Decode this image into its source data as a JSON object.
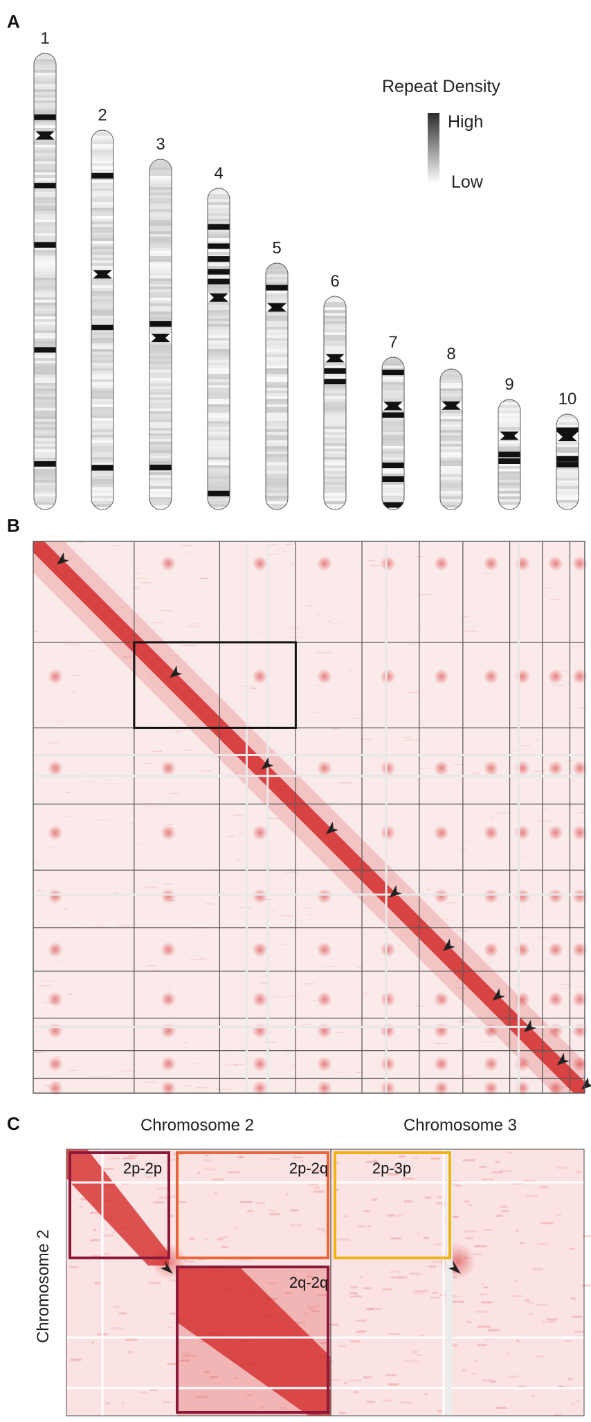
{
  "panels": {
    "a": "A",
    "b": "B",
    "c": "C"
  },
  "karyotype": {
    "chromosomes": [
      {
        "label": "1",
        "centromere": 0.18,
        "dark_bands": [
          0.14,
          0.29,
          0.42,
          0.65,
          0.9
        ]
      },
      {
        "label": "2",
        "centromere": 0.38,
        "dark_bands": [
          0.12,
          0.52,
          0.89
        ]
      },
      {
        "label": "3",
        "centromere": 0.51,
        "dark_bands": [
          0.47,
          0.88
        ]
      },
      {
        "label": "4",
        "centromere": 0.34,
        "dark_bands": [
          0.12,
          0.18,
          0.22,
          0.26,
          0.29,
          0.95
        ]
      },
      {
        "label": "5",
        "centromere": 0.18,
        "dark_bands": [
          0.1
        ]
      },
      {
        "label": "6",
        "centromere": 0.29,
        "dark_bands": [
          0.35,
          0.4
        ]
      },
      {
        "label": "7",
        "centromere": 0.32,
        "dark_bands": [
          0.1,
          0.38,
          0.71,
          0.8,
          0.97
        ]
      },
      {
        "label": "8",
        "centromere": 0.26,
        "dark_bands": []
      },
      {
        "label": "9",
        "centromere": 0.33,
        "dark_bands": [
          0.5,
          0.56
        ]
      },
      {
        "label": "10",
        "centromere": 0.24,
        "dark_bands": [
          0.17,
          0.47,
          0.53
        ]
      }
    ],
    "legend": {
      "title": "Repeat Density",
      "high": "High",
      "low": "Low",
      "colors": {
        "high": "#2b2b2b",
        "low": "#ffffff"
      }
    }
  },
  "heatmap": {
    "color": "#d42b2b",
    "boundaries": [
      0,
      0.183,
      0.476,
      0.7,
      0.864,
      0.923
    ],
    "arrow_positions": [
      0.04,
      0.245,
      0.411,
      0.528,
      0.643,
      0.74,
      0.83,
      0.887,
      0.947,
      0.991
    ]
  },
  "zoom": {
    "col_label_1": "Chromosome 2",
    "col_label_2": "Chromosome 3",
    "row_label": "Chromosome 2",
    "boxes": [
      {
        "label": "2p-2p",
        "color": "#8b1a3a"
      },
      {
        "label": "2p-2q",
        "color": "#e8673a"
      },
      {
        "label": "2p-3p",
        "color": "#f0b21a"
      },
      {
        "label": "2q-2q",
        "color": "#8b1a3a"
      }
    ]
  }
}
